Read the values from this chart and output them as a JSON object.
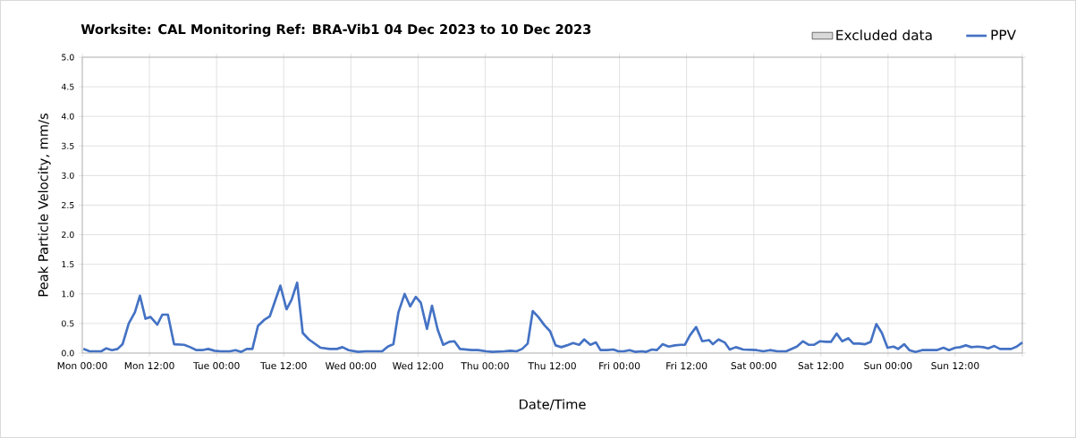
{
  "chart_data": {
    "type": "line",
    "title": "Worksite: CAL    Monitoring Ref: BRA-Vib1     04 Dec 2023 to 10 Dec 2023",
    "xlabel": "Date/Time",
    "ylabel": "Peak Particle Velocity, mm/s",
    "xlim": [
      "2023-12-04T00:00",
      "2023-12-11T00:00"
    ],
    "ylim": [
      0,
      5
    ],
    "xticks": [
      {
        "value": "2023-12-04T00:00",
        "label": "Mon 00:00"
      },
      {
        "value": "2023-12-04T12:00",
        "label": "Mon 12:00"
      },
      {
        "value": "2023-12-05T00:00",
        "label": "Tue 00:00"
      },
      {
        "value": "2023-12-05T12:00",
        "label": "Tue 12:00"
      },
      {
        "value": "2023-12-06T00:00",
        "label": "Wed 00:00"
      },
      {
        "value": "2023-12-06T12:00",
        "label": "Wed 12:00"
      },
      {
        "value": "2023-12-07T00:00",
        "label": "Thu 00:00"
      },
      {
        "value": "2023-12-07T12:00",
        "label": "Thu 12:00"
      },
      {
        "value": "2023-12-08T00:00",
        "label": "Fri 00:00"
      },
      {
        "value": "2023-12-08T12:00",
        "label": "Fri 12:00"
      },
      {
        "value": "2023-12-09T00:00",
        "label": "Sat 00:00"
      },
      {
        "value": "2023-12-09T12:00",
        "label": "Sat 12:00"
      },
      {
        "value": "2023-12-10T00:00",
        "label": "Sun 00:00"
      },
      {
        "value": "2023-12-10T12:00",
        "label": "Sun 12:00"
      },
      {
        "value": "2023-12-11T00:00",
        "label": null
      }
    ],
    "yticks": [
      {
        "value": 0,
        "label": "0.0"
      },
      {
        "value": 0.5,
        "label": "0.5"
      },
      {
        "value": 1,
        "label": "1.0"
      },
      {
        "value": 1.5,
        "label": "1.5"
      },
      {
        "value": 2,
        "label": "2.0"
      },
      {
        "value": 2.5,
        "label": "2.5"
      },
      {
        "value": 3,
        "label": "3.0"
      },
      {
        "value": 3.5,
        "label": "3.5"
      },
      {
        "value": 4,
        "label": "4.0"
      },
      {
        "value": 4.5,
        "label": "4.5"
      },
      {
        "value": 5,
        "label": "5.0"
      }
    ],
    "grid": true,
    "legend": "top right",
    "series": [
      {
        "name": "Excluded data",
        "type": "area",
        "color": "#d9d9d9"
      },
      {
        "name": "PPV",
        "color": "#4472c4",
        "x": [
          "2023-12-04T00:12",
          "2023-12-04T01:18",
          "2023-12-04T03:24",
          "2023-12-04T04:18",
          "2023-12-04T05:18",
          "2023-12-04T06:18",
          "2023-12-04T07:12",
          "2023-12-04T08:18",
          "2023-12-04T09:24",
          "2023-12-04T10:18",
          "2023-12-04T11:18",
          "2023-12-04T12:12",
          "2023-12-04T13:24",
          "2023-12-04T14:18",
          "2023-12-04T15:18",
          "2023-12-04T16:24",
          "2023-12-04T18:12",
          "2023-12-04T19:18",
          "2023-12-04T20:24",
          "2023-12-04T21:24",
          "2023-12-04T22:30",
          "2023-12-04T23:36",
          "2023-12-05T00:42",
          "2023-12-05T02:24",
          "2023-12-05T03:24",
          "2023-12-05T04:24",
          "2023-12-05T05:24",
          "2023-12-05T06:24",
          "2023-12-05T07:24",
          "2023-12-05T08:30",
          "2023-12-05T09:30",
          "2023-12-05T11:24",
          "2023-12-05T12:30",
          "2023-12-05T13:24",
          "2023-12-05T14:24",
          "2023-12-05T15:24",
          "2023-12-05T16:30",
          "2023-12-05T18:36",
          "2023-12-05T20:12",
          "2023-12-05T21:30",
          "2023-12-05T22:30",
          "2023-12-05T23:36",
          "2023-12-06T01:18",
          "2023-12-06T02:36",
          "2023-12-06T05:36",
          "2023-12-06T06:36",
          "2023-12-06T07:36",
          "2023-12-06T08:30",
          "2023-12-06T09:36",
          "2023-12-06T10:36",
          "2023-12-06T11:36",
          "2023-12-06T12:30",
          "2023-12-06T13:36",
          "2023-12-06T14:30",
          "2023-12-06T15:30",
          "2023-12-06T16:30",
          "2023-12-06T17:36",
          "2023-12-06T18:30",
          "2023-12-06T19:30",
          "2023-12-06T21:36",
          "2023-12-06T22:42",
          "2023-12-07T00:12",
          "2023-12-07T01:18",
          "2023-12-07T03:24",
          "2023-12-07T04:30",
          "2023-12-07T05:36",
          "2023-12-07T06:36",
          "2023-12-07T07:36",
          "2023-12-07T08:30",
          "2023-12-07T09:30",
          "2023-12-07T10:36",
          "2023-12-07T11:36",
          "2023-12-07T12:36",
          "2023-12-07T13:36",
          "2023-12-07T14:36",
          "2023-12-07T15:42",
          "2023-12-07T16:48",
          "2023-12-07T17:42",
          "2023-12-07T18:48",
          "2023-12-07T19:48",
          "2023-12-07T20:36",
          "2023-12-07T21:48",
          "2023-12-07T22:54",
          "2023-12-07T23:48",
          "2023-12-08T00:48",
          "2023-12-08T01:48",
          "2023-12-08T02:54",
          "2023-12-08T04:00",
          "2023-12-08T04:42",
          "2023-12-08T05:48",
          "2023-12-08T06:42",
          "2023-12-08T07:42",
          "2023-12-08T08:48",
          "2023-12-08T09:54",
          "2023-12-08T10:54",
          "2023-12-08T11:42",
          "2023-12-08T12:36",
          "2023-12-08T13:42",
          "2023-12-08T14:48",
          "2023-12-08T16:00",
          "2023-12-08T16:42",
          "2023-12-08T17:42",
          "2023-12-08T18:48",
          "2023-12-08T19:42",
          "2023-12-08T20:48",
          "2023-12-08T22:06",
          "2023-12-09T00:30",
          "2023-12-09T01:42",
          "2023-12-09T02:54",
          "2023-12-09T04:12",
          "2023-12-09T05:48",
          "2023-12-09T07:42",
          "2023-12-09T08:48",
          "2023-12-09T09:48",
          "2023-12-09T10:48",
          "2023-12-09T11:48",
          "2023-12-09T12:54",
          "2023-12-09T13:48",
          "2023-12-09T14:48",
          "2023-12-09T15:48",
          "2023-12-09T16:54",
          "2023-12-09T17:48",
          "2023-12-09T18:54",
          "2023-12-09T19:54",
          "2023-12-09T20:54",
          "2023-12-09T21:54",
          "2023-12-09T22:54",
          "2023-12-09T23:54",
          "2023-12-10T01:00",
          "2023-12-10T01:48",
          "2023-12-10T02:54",
          "2023-12-10T03:48",
          "2023-12-10T04:54",
          "2023-12-10T06:06",
          "2023-12-10T08:42",
          "2023-12-10T09:54",
          "2023-12-10T10:54",
          "2023-12-10T12:00",
          "2023-12-10T12:54",
          "2023-12-10T13:54",
          "2023-12-10T14:54",
          "2023-12-10T16:00",
          "2023-12-10T17:00",
          "2023-12-10T17:54",
          "2023-12-10T19:00",
          "2023-12-10T20:00",
          "2023-12-10T22:00",
          "2023-12-10T23:00",
          "2023-12-11T00:00"
        ],
        "values": [
          0.07,
          0.03,
          0.03,
          0.08,
          0.05,
          0.07,
          0.15,
          0.5,
          0.69,
          0.97,
          0.58,
          0.61,
          0.48,
          0.65,
          0.65,
          0.15,
          0.14,
          0.1,
          0.05,
          0.05,
          0.07,
          0.04,
          0.03,
          0.03,
          0.05,
          0.02,
          0.07,
          0.07,
          0.46,
          0.56,
          0.62,
          1.14,
          0.74,
          0.9,
          1.19,
          0.34,
          0.23,
          0.09,
          0.07,
          0.07,
          0.1,
          0.05,
          0.02,
          0.03,
          0.03,
          0.11,
          0.15,
          0.69,
          1.0,
          0.79,
          0.95,
          0.85,
          0.41,
          0.8,
          0.4,
          0.14,
          0.19,
          0.2,
          0.07,
          0.05,
          0.05,
          0.03,
          0.02,
          0.03,
          0.04,
          0.03,
          0.07,
          0.16,
          0.71,
          0.61,
          0.47,
          0.37,
          0.13,
          0.1,
          0.13,
          0.17,
          0.14,
          0.23,
          0.14,
          0.18,
          0.05,
          0.05,
          0.06,
          0.03,
          0.03,
          0.05,
          0.02,
          0.03,
          0.02,
          0.06,
          0.05,
          0.15,
          0.11,
          0.13,
          0.14,
          0.14,
          0.3,
          0.44,
          0.2,
          0.22,
          0.15,
          0.23,
          0.18,
          0.06,
          0.1,
          0.06,
          0.05,
          0.03,
          0.05,
          0.03,
          0.03,
          0.11,
          0.2,
          0.14,
          0.14,
          0.2,
          0.19,
          0.19,
          0.33,
          0.2,
          0.25,
          0.16,
          0.16,
          0.15,
          0.19,
          0.49,
          0.34,
          0.09,
          0.11,
          0.07,
          0.15,
          0.05,
          0.02,
          0.05,
          0.05,
          0.09,
          0.05,
          0.09,
          0.1,
          0.13,
          0.1,
          0.11,
          0.1,
          0.08,
          0.12,
          0.07,
          0.07,
          0.11,
          0.18
        ]
      }
    ]
  }
}
